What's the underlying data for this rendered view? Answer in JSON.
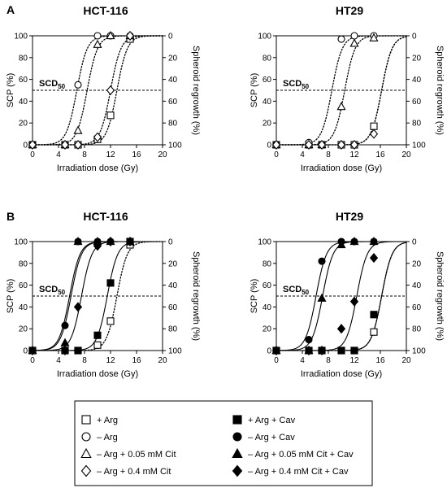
{
  "figure": {
    "panel_labels": [
      "A",
      "B"
    ],
    "scd_label": {
      "main": "SCD",
      "sub": "50"
    }
  },
  "chart_data": [
    {
      "panel": "A",
      "title": "HCT-116",
      "type": "scatter",
      "xlabel": "Irradiation dose (Gy)",
      "ylabel": "SCP (%)",
      "y2label": "Spheroid regrowth (%)",
      "xlim": [
        0,
        20
      ],
      "ylim": [
        0,
        100
      ],
      "xticks": [
        0,
        4,
        8,
        12,
        16,
        20
      ],
      "yticks": [
        0,
        20,
        40,
        60,
        80,
        100
      ],
      "y2ticks": [
        100,
        80,
        60,
        40,
        20,
        0
      ],
      "reference_line": {
        "y": 50,
        "label": "SCD50",
        "style": "dashed"
      },
      "series": [
        {
          "name": "+ Arg",
          "marker": "square",
          "filled": false,
          "fit": "dotted",
          "x": [
            0,
            5,
            7,
            10,
            12,
            15
          ],
          "y": [
            0,
            0,
            0,
            5,
            27,
            97
          ]
        },
        {
          "name": "– Arg",
          "marker": "circle",
          "filled": false,
          "fit": "dotted",
          "x": [
            0,
            5,
            7,
            10,
            12,
            15
          ],
          "y": [
            0,
            0,
            55,
            100,
            100,
            100
          ]
        },
        {
          "name": "– Arg + 0.05 mM Cit",
          "marker": "triangle",
          "filled": false,
          "fit": "dotted",
          "x": [
            0,
            5,
            7,
            10,
            12,
            15
          ],
          "y": [
            0,
            0,
            13,
            92,
            100,
            100
          ]
        },
        {
          "name": "– Arg + 0.4 mM Cit",
          "marker": "diamond",
          "filled": false,
          "fit": "dotted",
          "x": [
            0,
            5,
            7,
            10,
            12,
            15
          ],
          "y": [
            0,
            0,
            0,
            7,
            50,
            100
          ]
        }
      ]
    },
    {
      "panel": "A",
      "title": "HT29",
      "type": "scatter",
      "xlabel": "Irradiation dose (Gy)",
      "ylabel": "SCP (%)",
      "y2label": "Spheroid regrowth (%)",
      "xlim": [
        0,
        20
      ],
      "ylim": [
        0,
        100
      ],
      "xticks": [
        0,
        4,
        8,
        12,
        16,
        20
      ],
      "yticks": [
        0,
        20,
        40,
        60,
        80,
        100
      ],
      "y2ticks": [
        100,
        80,
        60,
        40,
        20,
        0
      ],
      "reference_line": {
        "y": 50,
        "label": "SCD50",
        "style": "dashed"
      },
      "series": [
        {
          "name": "+ Arg",
          "marker": "square",
          "filled": false,
          "fit": "dotted",
          "x": [
            0,
            5,
            7,
            10,
            12,
            15
          ],
          "y": [
            0,
            0,
            0,
            0,
            0,
            17
          ]
        },
        {
          "name": "– Arg",
          "marker": "circle",
          "filled": false,
          "fit": "dotted",
          "x": [
            0,
            5,
            7,
            10,
            12,
            15
          ],
          "y": [
            0,
            2,
            0,
            97,
            100,
            100
          ]
        },
        {
          "name": "– Arg + 0.05 mM Cit",
          "marker": "triangle",
          "filled": false,
          "fit": "dotted",
          "x": [
            0,
            5,
            7,
            10,
            12,
            15
          ],
          "y": [
            0,
            0,
            0,
            35,
            93,
            98
          ]
        },
        {
          "name": "– Arg + 0.4 mM Cit",
          "marker": "diamond",
          "filled": false,
          "fit": "dotted",
          "x": [
            0,
            5,
            7,
            10,
            12,
            15
          ],
          "y": [
            0,
            0,
            0,
            0,
            0,
            10
          ]
        }
      ]
    },
    {
      "panel": "B",
      "title": "HCT-116",
      "type": "scatter",
      "xlabel": "Irradiation dose (Gy)",
      "ylabel": "SCP (%)",
      "y2label": "Spheroid regrowth (%)",
      "xlim": [
        0,
        20
      ],
      "ylim": [
        0,
        100
      ],
      "xticks": [
        0,
        4,
        8,
        12,
        16,
        20
      ],
      "yticks": [
        0,
        20,
        40,
        60,
        80,
        100
      ],
      "y2ticks": [
        100,
        80,
        60,
        40,
        20,
        0
      ],
      "reference_line": {
        "y": 50,
        "label": "SCD50",
        "style": "dashed"
      },
      "series": [
        {
          "name": "+ Arg",
          "marker": "square",
          "filled": false,
          "fit": "dotted",
          "x": [
            0,
            5,
            7,
            10,
            12,
            15
          ],
          "y": [
            0,
            0,
            0,
            5,
            27,
            97
          ]
        },
        {
          "name": "+ Arg + Cav",
          "marker": "square",
          "filled": true,
          "fit": "solid",
          "x": [
            0,
            5,
            7,
            10,
            12,
            15
          ],
          "y": [
            0,
            0,
            0,
            14,
            62,
            100
          ]
        },
        {
          "name": "– Arg + Cav",
          "marker": "circle",
          "filled": true,
          "fit": "solid",
          "x": [
            0,
            5,
            7,
            10,
            12,
            15
          ],
          "y": [
            0,
            23,
            100,
            100,
            100,
            100
          ]
        },
        {
          "name": "– Arg + 0.05 mM Cit + Cav",
          "marker": "triangle",
          "filled": true,
          "fit": "solid",
          "x": [
            0,
            5,
            7,
            10,
            12,
            15
          ],
          "y": [
            0,
            7,
            100,
            100,
            100,
            100
          ]
        },
        {
          "name": "– Arg + 0.4 mM Cit + Cav",
          "marker": "diamond",
          "filled": true,
          "fit": "solid",
          "x": [
            0,
            5,
            7,
            10,
            12,
            15
          ],
          "y": [
            0,
            0,
            40,
            96,
            100,
            100
          ]
        }
      ]
    },
    {
      "panel": "B",
      "title": "HT29",
      "type": "scatter",
      "xlabel": "Irradiation dose (Gy)",
      "ylabel": "SCP (%)",
      "y2label": "Spheroid regrowth (%)",
      "xlim": [
        0,
        20
      ],
      "ylim": [
        0,
        100
      ],
      "xticks": [
        0,
        4,
        8,
        12,
        16,
        20
      ],
      "yticks": [
        0,
        20,
        40,
        60,
        80,
        100
      ],
      "y2ticks": [
        100,
        80,
        60,
        40,
        20,
        0
      ],
      "reference_line": {
        "y": 50,
        "label": "SCD50",
        "style": "dashed"
      },
      "series": [
        {
          "name": "+ Arg",
          "marker": "square",
          "filled": false,
          "fit": "dotted",
          "x": [
            0,
            5,
            7,
            10,
            12,
            15
          ],
          "y": [
            0,
            0,
            0,
            0,
            0,
            17
          ]
        },
        {
          "name": "+ Arg + Cav",
          "marker": "square",
          "filled": true,
          "fit": "solid",
          "x": [
            0,
            5,
            7,
            10,
            12,
            15
          ],
          "y": [
            0,
            0,
            0,
            0,
            0,
            33
          ]
        },
        {
          "name": "– Arg + Cav",
          "marker": "circle",
          "filled": true,
          "fit": "solid",
          "x": [
            0,
            5,
            7,
            10,
            12,
            15
          ],
          "y": [
            0,
            10,
            82,
            100,
            100,
            100
          ]
        },
        {
          "name": "– Arg + 0.05 mM Cit + Cav",
          "marker": "triangle",
          "filled": true,
          "fit": "solid",
          "x": [
            0,
            5,
            7,
            10,
            12,
            15
          ],
          "y": [
            0,
            0,
            48,
            97,
            100,
            100
          ]
        },
        {
          "name": "– Arg + 0.4 mM Cit + Cav",
          "marker": "diamond",
          "filled": true,
          "fit": "solid",
          "x": [
            0,
            5,
            7,
            10,
            12,
            15
          ],
          "y": [
            0,
            0,
            0,
            20,
            45,
            85
          ]
        }
      ]
    }
  ],
  "legend": {
    "placement": "bottom",
    "items": [
      {
        "label": "+ Arg",
        "marker": "square",
        "filled": false
      },
      {
        "label": "+ Arg + Cav",
        "marker": "square",
        "filled": true
      },
      {
        "label": "– Arg",
        "marker": "circle",
        "filled": false
      },
      {
        "label": "– Arg + Cav",
        "marker": "circle",
        "filled": true
      },
      {
        "label": "– Arg + 0.05 mM Cit",
        "marker": "triangle",
        "filled": false
      },
      {
        "label": "– Arg + 0.05 mM Cit + Cav",
        "marker": "triangle",
        "filled": true
      },
      {
        "label": "– Arg + 0.4 mM Cit",
        "marker": "diamond",
        "filled": false
      },
      {
        "label": "– Arg + 0.4 mM Cit + Cav",
        "marker": "diamond",
        "filled": true
      }
    ]
  }
}
